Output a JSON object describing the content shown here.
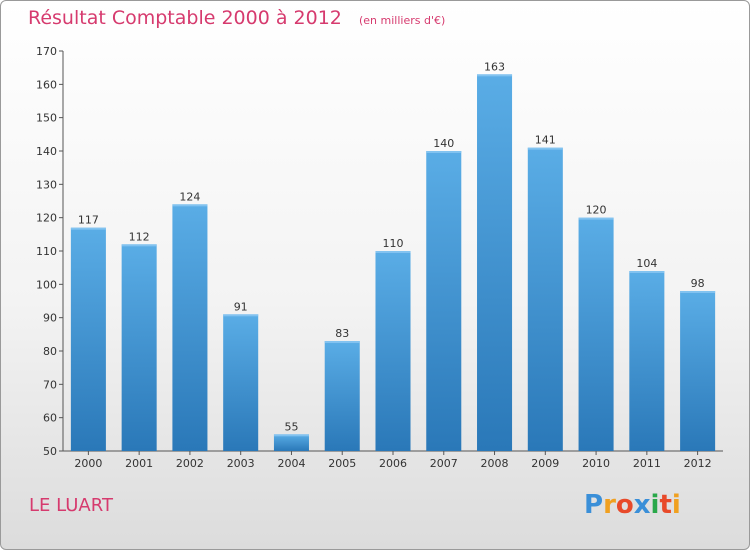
{
  "chart_data": {
    "type": "bar",
    "title": "Résultat Comptable 2000 à 2012",
    "subtitle": "(en milliers d'€)",
    "categories": [
      "2000",
      "2001",
      "2002",
      "2003",
      "2004",
      "2005",
      "2006",
      "2007",
      "2008",
      "2009",
      "2010",
      "2011",
      "2012"
    ],
    "values": [
      117,
      112,
      124,
      91,
      55,
      83,
      110,
      140,
      163,
      141,
      120,
      104,
      98
    ],
    "ylim": [
      50,
      170
    ],
    "yticks": [
      50,
      60,
      70,
      80,
      90,
      100,
      110,
      120,
      130,
      140,
      150,
      160,
      170
    ],
    "grid": false,
    "bar_color_top": "#5aade6",
    "bar_color_bottom": "#2a78b8"
  },
  "location": "LE LUART",
  "logo": {
    "text": "Proxiti",
    "colors": [
      "#3a8fd8",
      "#f0a020",
      "#e84a2a",
      "#3a8fd8",
      "#2aa84a",
      "#e84a2a",
      "#f0a020"
    ]
  },
  "colors": {
    "accent": "#d63a6e"
  }
}
